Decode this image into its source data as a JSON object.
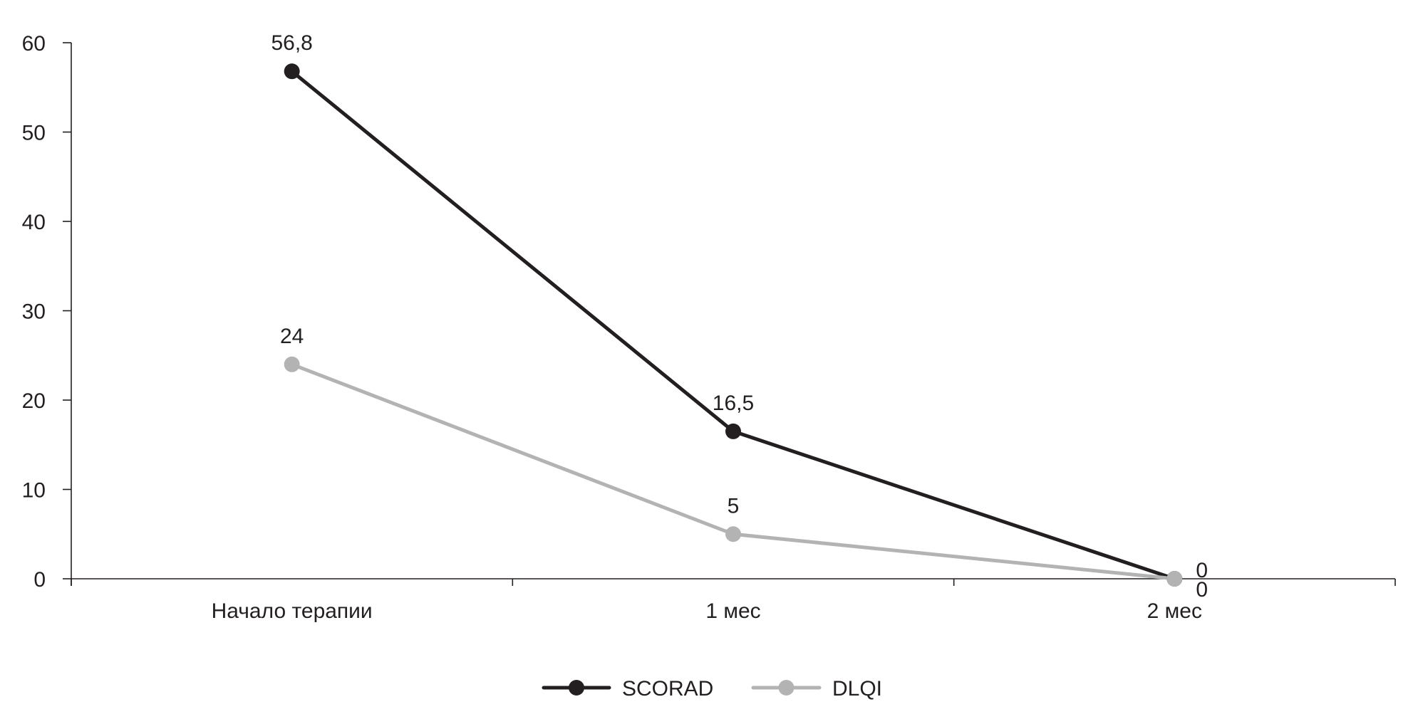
{
  "chart_data": {
    "type": "line",
    "categories": [
      "Начало терапии",
      "1 мес",
      "2 мес"
    ],
    "ylim": [
      0,
      60
    ],
    "yticks": [
      0,
      10,
      20,
      30,
      40,
      50,
      60
    ],
    "grid": false,
    "legend_position": "bottom-center",
    "series": [
      {
        "name": "SCORAD",
        "values": [
          56.8,
          16.5,
          0
        ],
        "value_labels": [
          "56,8",
          "16,5",
          "0"
        ],
        "color": "#231f20"
      },
      {
        "name": "DLQI",
        "values": [
          24,
          5,
          0
        ],
        "value_labels": [
          "24",
          "5",
          "0"
        ],
        "color": "#b3b3b3"
      }
    ]
  },
  "colors": {
    "axis": "#231f20",
    "text": "#231f20"
  }
}
